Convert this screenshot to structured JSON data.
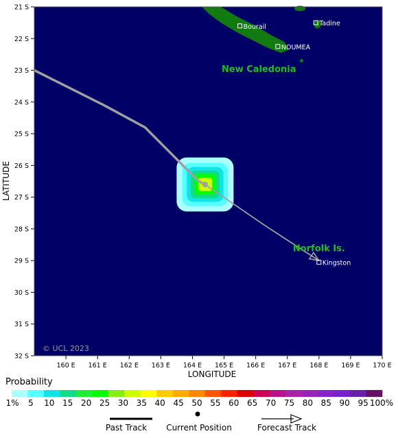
{
  "map": {
    "background": "#000066",
    "land_color": "#117a11",
    "place_label_color": "#22bb22",
    "track_color": "#a0a0a0",
    "lon_range": [
      159.0,
      170.0
    ],
    "lat_range": [
      -21.0,
      -32.0
    ],
    "lat_ticks": [
      {
        "value": -21,
        "label": "21 S"
      },
      {
        "value": -22,
        "label": "22 S"
      },
      {
        "value": -23,
        "label": "23 S"
      },
      {
        "value": -24,
        "label": "24 S"
      },
      {
        "value": -25,
        "label": "25 S"
      },
      {
        "value": -26,
        "label": "26 S"
      },
      {
        "value": -27,
        "label": "27 S"
      },
      {
        "value": -28,
        "label": "28 S"
      },
      {
        "value": -29,
        "label": "29 S"
      },
      {
        "value": -30,
        "label": "30 S"
      },
      {
        "value": -31,
        "label": "31 S"
      },
      {
        "value": -32,
        "label": "32 S"
      }
    ],
    "lon_ticks": [
      {
        "value": 160,
        "label": "160 E"
      },
      {
        "value": 161,
        "label": "161 E"
      },
      {
        "value": 162,
        "label": "162 E"
      },
      {
        "value": 163,
        "label": "163 E"
      },
      {
        "value": 164,
        "label": "164 E"
      },
      {
        "value": 165,
        "label": "165 E"
      },
      {
        "value": 166,
        "label": "166 E"
      },
      {
        "value": 167,
        "label": "167 E"
      },
      {
        "value": 168,
        "label": "168 E"
      },
      {
        "value": 169,
        "label": "169 E"
      },
      {
        "value": 170,
        "label": "170 E"
      }
    ],
    "xlabel": "LONGITUDE",
    "ylabel": "LATITUDE",
    "copyright": "© UCL 2023",
    "regions": [
      {
        "name": "New Caledonia",
        "lon": 166.1,
        "lat": -23.05
      },
      {
        "name": "Norfolk Is.",
        "lon": 168.0,
        "lat": -28.7
      }
    ],
    "towns": [
      {
        "name": "Bourail",
        "lon": 165.5,
        "lat": -21.6
      },
      {
        "name": "NOUMEA",
        "lon": 166.7,
        "lat": -22.25
      },
      {
        "name": "Tadine",
        "lon": 167.9,
        "lat": -21.5
      },
      {
        "name": "Kingston",
        "lon": 168.0,
        "lat": -29.05
      }
    ],
    "track": {
      "past": [
        [
          159.0,
          -23.0
        ],
        [
          159.6,
          -23.3
        ],
        [
          161.2,
          -24.1
        ],
        [
          162.5,
          -24.8
        ],
        [
          163.2,
          -25.5
        ],
        [
          163.8,
          -26.1
        ],
        [
          164.2,
          -26.5
        ],
        [
          164.4,
          -26.6
        ]
      ],
      "current": [
        164.4,
        -26.6
      ],
      "forecast": [
        [
          164.4,
          -26.6
        ],
        [
          166.3,
          -27.9
        ],
        [
          168.0,
          -29.0
        ]
      ]
    },
    "probability_rings": [
      {
        "value": 1,
        "r": 0.9
      },
      {
        "value": 5,
        "r": 0.72
      },
      {
        "value": 10,
        "r": 0.58
      },
      {
        "value": 15,
        "r": 0.46
      },
      {
        "value": 25,
        "r": 0.34
      },
      {
        "value": 35,
        "r": 0.22
      }
    ]
  },
  "legend": {
    "title": "Probability",
    "colors": [
      "#aaffff",
      "#55ffff",
      "#11e4e4",
      "#11dd88",
      "#22ee33",
      "#00ff00",
      "#88ee11",
      "#ccff00",
      "#ffff00",
      "#ffcc00",
      "#ffaa00",
      "#ff8800",
      "#ff5500",
      "#ff2200",
      "#dd0000",
      "#cc0055",
      "#bb1188",
      "#aa22aa",
      "#9922bb",
      "#8822cc",
      "#7722cc",
      "#6622aa",
      "#661166"
    ],
    "labels": [
      "1%",
      "5",
      "10",
      "15",
      "20",
      "25",
      "30",
      "35",
      "40",
      "45",
      "50",
      "55",
      "60",
      "65",
      "70",
      "75",
      "80",
      "85",
      "90",
      "95",
      "100%"
    ],
    "keys": [
      "Past Track",
      "Current Position",
      "Forecast Track"
    ]
  }
}
